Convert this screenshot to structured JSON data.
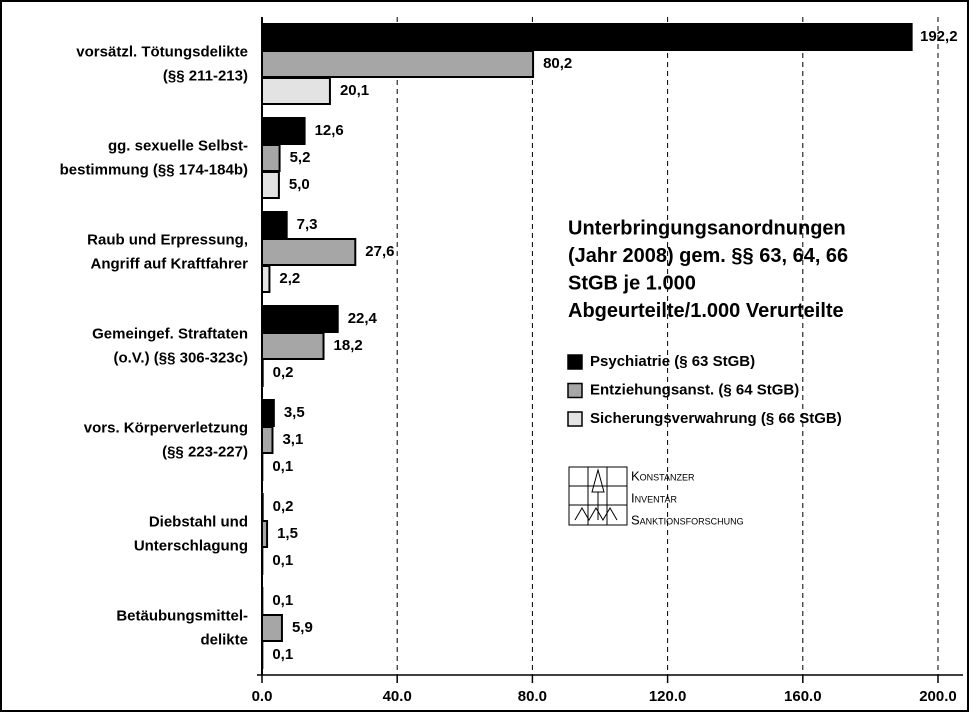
{
  "chart_data": {
    "type": "barh",
    "title": [
      "Unterbringungsanordnungen",
      "(Jahr 2008) gem. §§ 63, 64, 66",
      "StGB je 1.000",
      "Abgeurteilte/1.000 Verurteilte"
    ],
    "categories": [
      [
        "vorsätzl. Tötungsdelikte",
        "(§§ 211-213)"
      ],
      [
        "gg. sexuelle Selbst-",
        "bestimmung (§§ 174-184b)"
      ],
      [
        "Raub und Erpressung,",
        "Angriff auf Kraftfahrer"
      ],
      [
        "Gemeingef. Straftaten",
        "(o.V.) (§§ 306-323c)"
      ],
      [
        "vors. Körperverletzung",
        "(§§ 223-227)"
      ],
      [
        "Diebstahl und",
        "Unterschlagung"
      ],
      [
        "Betäubungsmittel-",
        "delikte"
      ]
    ],
    "series": [
      {
        "name": "Psychiatrie (§ 63 StGB)",
        "color": "#000000",
        "values": [
          192.2,
          12.6,
          7.3,
          22.4,
          3.5,
          0.2,
          0.1
        ],
        "value_labels": [
          "192,2",
          "12,6",
          "7,3",
          "22,4",
          "3,5",
          "0,2",
          "0,1"
        ]
      },
      {
        "name": "Entziehungsanst. (§ 64 StGB)",
        "color": "#a6a6a6",
        "values": [
          80.2,
          5.2,
          27.6,
          18.2,
          3.1,
          1.5,
          5.9
        ],
        "value_labels": [
          "80,2",
          "5,2",
          "27,6",
          "18,2",
          "3,1",
          "1,5",
          "5,9"
        ]
      },
      {
        "name": "Sicherungsverwahrung (§ 66 StGB)",
        "color": "#e3e3e3",
        "values": [
          20.1,
          5.0,
          2.2,
          0.2,
          0.1,
          0.1,
          0.1
        ],
        "value_labels": [
          "20,1",
          "5,0",
          "2,2",
          "0,2",
          "0,1",
          "0,1",
          "0,1"
        ]
      }
    ],
    "xlim": [
      0,
      200
    ],
    "xticks": [
      {
        "value": 0,
        "label": "0.0"
      },
      {
        "value": 40,
        "label": "40.0"
      },
      {
        "value": 80,
        "label": "80.0"
      },
      {
        "value": 120,
        "label": "120.0"
      },
      {
        "value": 160,
        "label": "160.0"
      },
      {
        "value": 200,
        "label": "200.0"
      }
    ],
    "grid": true,
    "logo": [
      "Konstanzer",
      "Inventar",
      "Sanktionsforschung"
    ]
  }
}
